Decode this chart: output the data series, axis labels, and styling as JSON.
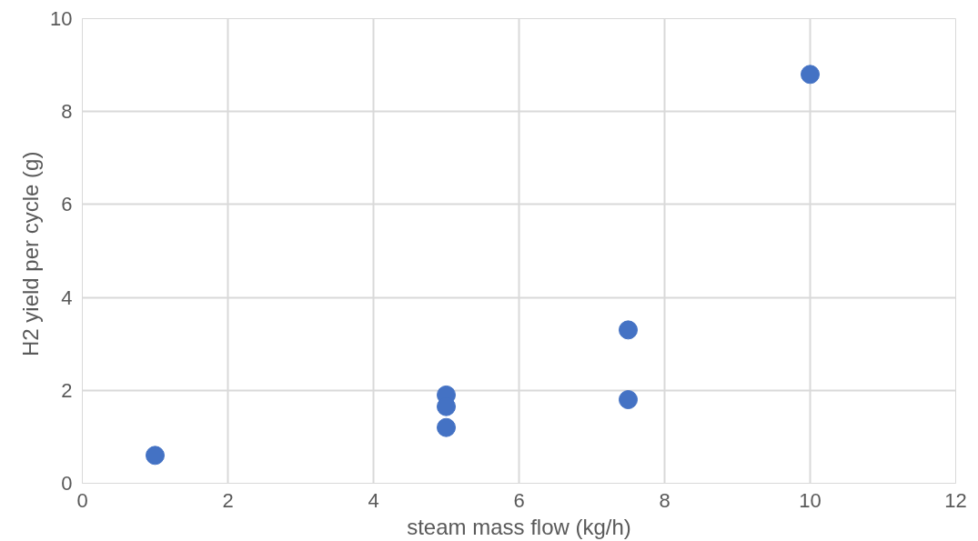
{
  "chart_data": {
    "type": "scatter",
    "xlabel": "steam mass flow (kg/h)",
    "ylabel": "H2 yield per cycle  (g)",
    "x": [
      1,
      5,
      5,
      5,
      7.5,
      7.5,
      10
    ],
    "series": [
      {
        "color": "#4472c4",
        "values": [
          0.6,
          1.9,
          1.65,
          1.2,
          3.3,
          1.8,
          8.8
        ]
      }
    ],
    "xlim": [
      0,
      12
    ],
    "xticks": [
      0,
      2,
      4,
      6,
      8,
      10,
      12
    ],
    "ylim": [
      0,
      10
    ],
    "yticks": [
      0,
      2,
      4,
      6,
      8,
      10
    ],
    "grid": true,
    "marker": "circle"
  }
}
